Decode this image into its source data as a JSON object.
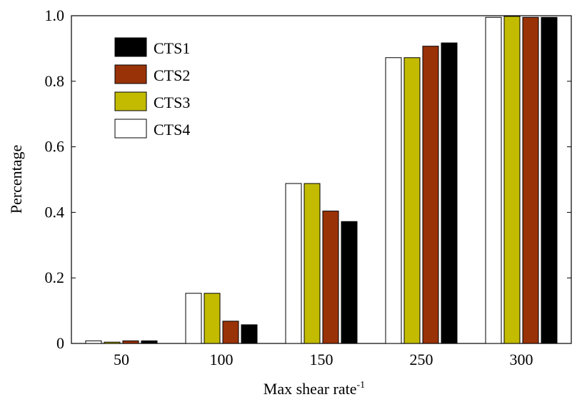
{
  "chart_data": {
    "type": "bar",
    "categories": [
      "50",
      "100",
      "150",
      "250",
      "300"
    ],
    "series": [
      {
        "name": "CTS4",
        "color": "#ffffff",
        "values": [
          0.008,
          0.153,
          0.488,
          0.872,
          0.995
        ]
      },
      {
        "name": "CTS3",
        "color": "#c2bb00",
        "values": [
          0.004,
          0.153,
          0.488,
          0.872,
          0.998
        ]
      },
      {
        "name": "CTS2",
        "color": "#9a3208",
        "values": [
          0.008,
          0.068,
          0.404,
          0.907,
          0.995
        ]
      },
      {
        "name": "CTS1",
        "color": "#000000",
        "values": [
          0.008,
          0.057,
          0.372,
          0.917,
          0.995
        ]
      }
    ],
    "legend_order": [
      "CTS1",
      "CTS2",
      "CTS3",
      "CTS4"
    ],
    "legend_position": "top-left",
    "title": "",
    "xlabel": "Max shear rate",
    "xlabel_superscript": "-1",
    "ylabel": "Percentage",
    "ylim": [
      0,
      1.0
    ],
    "yticks": [
      "0",
      "0.2",
      "0.4",
      "0.6",
      "0.8",
      "1.0"
    ],
    "grid": false
  }
}
